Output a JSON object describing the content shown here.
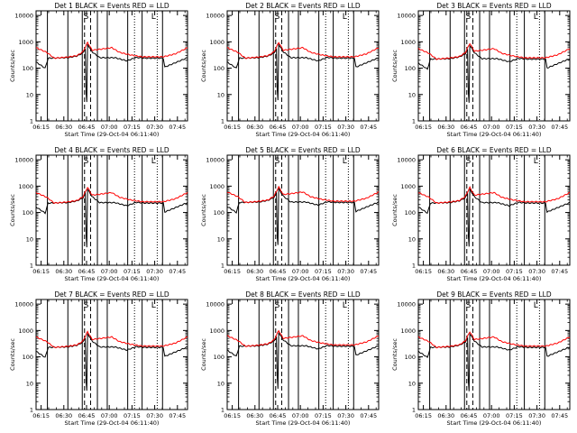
{
  "chart_data": [
    {
      "type": "line",
      "title": "Det 1  BLACK = Events  RED = LLD",
      "scale": 1.0,
      "dip": [
        12,
        5
      ]
    },
    {
      "type": "line",
      "title": "Det 2  BLACK = Events  RED = LLD",
      "scale": 1.0,
      "dip": [
        16,
        6
      ]
    },
    {
      "type": "line",
      "title": "Det 3  BLACK = Events  RED = LLD",
      "scale": 0.92,
      "dip": [
        12,
        5
      ]
    },
    {
      "type": "line",
      "title": "Det 4  BLACK = Events  RED = LLD",
      "scale": 0.95,
      "dip": [
        16,
        5
      ]
    },
    {
      "type": "line",
      "title": "Det 5  BLACK = Events  RED = LLD",
      "scale": 1.0,
      "dip": [
        13,
        6
      ]
    },
    {
      "type": "line",
      "title": "Det 6  BLACK = Events  RED = LLD",
      "scale": 0.95,
      "dip": [
        14,
        5
      ]
    },
    {
      "type": "line",
      "title": "Det 7  BLACK = Events  RED = LLD",
      "scale": 0.95,
      "dip": [
        12,
        5
      ]
    },
    {
      "type": "line",
      "title": "Det 8  BLACK = Events  RED = LLD",
      "scale": 1.05,
      "dip": [
        20,
        6
      ]
    },
    {
      "type": "line",
      "title": "Det 9  BLACK = Events  RED = LLD",
      "scale": 0.95,
      "dip": [
        12,
        5
      ]
    }
  ],
  "shared": {
    "xlabel": "Start Time (29-Oct-04 06:11:40)",
    "ylabel": "Counts/sec",
    "xticks": [
      "06:15",
      "06:30",
      "06:45",
      "07:00",
      "07:15",
      "07:30",
      "07:45"
    ],
    "xtick_minutes": [
      3.33,
      18.33,
      33.33,
      48.33,
      63.33,
      78.33,
      93.33
    ],
    "x_range_minutes": [
      0,
      100
    ],
    "ylim": [
      1,
      15000
    ],
    "ylog": true,
    "yticks": [
      "1",
      "10",
      "100",
      "1000",
      "10000"
    ],
    "yticks_values": [
      1,
      10,
      100,
      1000,
      10000
    ],
    "solid_vlines_minutes": [
      7.5,
      21,
      30.5,
      40.5,
      47,
      60.5,
      70,
      83.5
    ],
    "dashed_vlines_minutes": [
      32,
      36
    ],
    "dotted_vlines_minutes": [
      65,
      80
    ],
    "flags": [
      {
        "text": "S",
        "minute": 33
      },
      {
        "text": "L",
        "minute": 77.5
      }
    ],
    "series": [
      {
        "name": "BLACK = Events",
        "color": "#000000"
      },
      {
        "name": "RED = LLD",
        "color": "#ff0000"
      }
    ],
    "red_curve": [
      [
        0,
        600
      ],
      [
        7,
        400
      ],
      [
        12,
        240
      ],
      [
        21,
        265
      ],
      [
        27,
        300
      ],
      [
        31,
        420
      ],
      [
        34,
        950
      ],
      [
        37,
        480
      ],
      [
        42,
        520
      ],
      [
        50,
        600
      ],
      [
        55,
        400
      ],
      [
        62,
        320
      ],
      [
        70,
        270
      ],
      [
        84,
        270
      ],
      [
        92,
        350
      ],
      [
        100,
        600
      ]
    ],
    "black_curve": [
      [
        0,
        170
      ],
      [
        4,
        120
      ],
      [
        6,
        100
      ],
      [
        8,
        240
      ],
      [
        21,
        250
      ],
      [
        27,
        290
      ],
      [
        31,
        380
      ],
      [
        34,
        800
      ],
      [
        37,
        420
      ],
      [
        42,
        250
      ],
      [
        52,
        250
      ],
      [
        60,
        190
      ],
      [
        66,
        255
      ],
      [
        72,
        240
      ],
      [
        84,
        240
      ],
      [
        85,
        110
      ],
      [
        100,
        250
      ]
    ]
  }
}
